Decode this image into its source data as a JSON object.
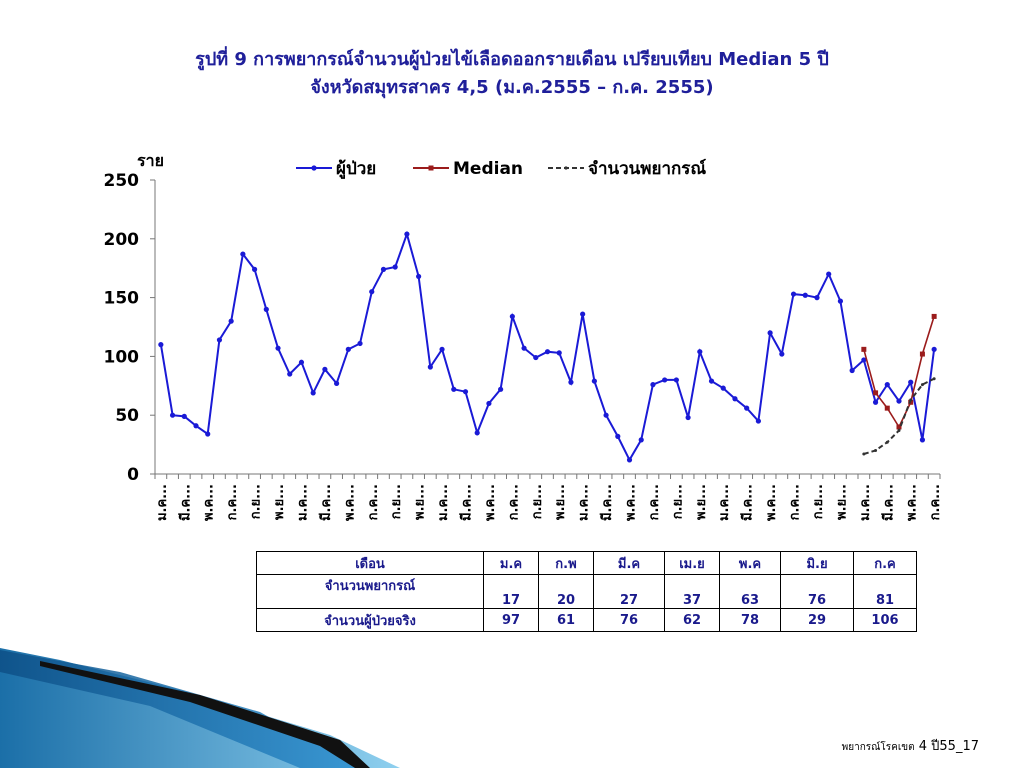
{
  "title": {
    "line1": "รูปที่ 9 การพยากรณ์จำนวนผู้ป่วยไข้เลือดออกรายเดือน เปรียบเทียบ Median 5 ปี",
    "line2": "จังหวัดสมุทรสาคร 4,5 (ม.ค.2555 – ก.ค. 2555)"
  },
  "chart_data": {
    "type": "line",
    "ylabel": "ราย",
    "ylim": [
      0,
      250
    ],
    "yticks": [
      0,
      50,
      100,
      150,
      200,
      250
    ],
    "grid": false,
    "legend_position": "top",
    "x_tick_labels": [
      "ม.ค...",
      "มี.ค...",
      "พ.ค...",
      "ก.ค...",
      "ก.ย...",
      "พ.ย...",
      "ม.ค...",
      "มี.ค...",
      "พ.ค...",
      "ก.ค...",
      "ก.ย...",
      "พ.ย...",
      "ม.ค...",
      "มี.ค...",
      "พ.ค...",
      "ก.ค...",
      "ก.ย...",
      "พ.ย...",
      "ม.ค...",
      "มี.ค...",
      "พ.ค...",
      "ก.ค...",
      "ก.ย...",
      "พ.ย...",
      "ม.ค...",
      "มี.ค...",
      "พ.ค...",
      "ก.ค...",
      "ก.ย...",
      "พ.ย...",
      "ม.ค...",
      "มี.ค...",
      "พ.ค...",
      "ก.ค..."
    ],
    "series": [
      {
        "name": "ผู้ป่วย",
        "color": "#1a1ad6",
        "start_index": 0,
        "values": [
          110,
          50,
          49,
          41,
          34,
          114,
          130,
          187,
          174,
          140,
          107,
          85,
          95,
          69,
          89,
          77,
          106,
          111,
          155,
          174,
          176,
          204,
          168,
          91,
          106,
          72,
          70,
          35,
          60,
          72,
          134,
          107,
          99,
          104,
          103,
          78,
          136,
          79,
          50,
          32,
          12,
          29,
          76,
          80,
          80,
          48,
          104,
          79,
          73,
          64,
          56,
          45,
          120,
          102,
          153,
          152,
          150,
          170,
          147,
          88,
          97,
          61,
          76,
          62,
          78,
          29,
          106
        ]
      },
      {
        "name": "Median",
        "color": "#9b1c1c",
        "start_index": 60,
        "values": [
          106,
          69,
          56,
          40,
          61,
          102,
          134
        ]
      },
      {
        "name": "จำนวนพยากรณ์",
        "color": "#333333",
        "dashed": true,
        "start_index": 60,
        "values": [
          17,
          20,
          27,
          37,
          63,
          76,
          81
        ]
      }
    ]
  },
  "table": {
    "headers": [
      "เดือน",
      "ม.ค",
      "ก.พ",
      "มี.ค",
      "เม.ย",
      "พ.ค",
      "มิ.ย",
      "ก.ค"
    ],
    "rows": [
      {
        "label": "จำนวนพยากรณ์",
        "values": [
          "17",
          "20",
          "27",
          "37",
          "63",
          "76",
          "81"
        ]
      },
      {
        "label": "จำนวนผู้ป่วยจริง",
        "values": [
          "97",
          "61",
          "76",
          "62",
          "78",
          "29",
          "106"
        ]
      }
    ]
  },
  "footer": {
    "prefix": "พยากรณ์โรคเขต",
    "suffix": "4 ปี55_17"
  }
}
